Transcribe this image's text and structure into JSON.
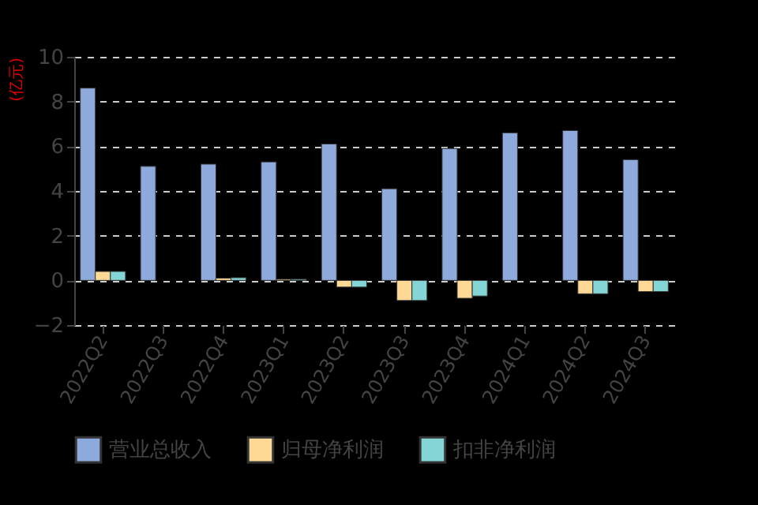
{
  "chart_data": {
    "type": "bar",
    "ylabel": "(亿元)",
    "categories": [
      "2022Q2",
      "2022Q3",
      "2022Q4",
      "2023Q1",
      "2023Q2",
      "2023Q3",
      "2023Q4",
      "2024Q1",
      "2024Q2",
      "2024Q3"
    ],
    "series": [
      {
        "name": "营业总收入",
        "color": "#8eaadc",
        "values": [
          8.6,
          5.1,
          5.2,
          5.3,
          6.1,
          4.1,
          5.9,
          6.6,
          6.7,
          5.4
        ]
      },
      {
        "name": "归母净利润",
        "color": "#fed996",
        "values": [
          0.4,
          null,
          0.1,
          0.05,
          -0.3,
          -0.9,
          -0.8,
          null,
          -0.6,
          -0.5
        ]
      },
      {
        "name": "扣非净利润",
        "color": "#84d6d6",
        "values": [
          0.4,
          null,
          0.12,
          0.05,
          -0.3,
          -0.9,
          -0.7,
          null,
          -0.6,
          -0.5
        ]
      }
    ],
    "ylim": [
      -2,
      10
    ],
    "yticks": [
      -2,
      0,
      2,
      4,
      6,
      8,
      10
    ],
    "grid": "y",
    "legend": "bottom"
  }
}
